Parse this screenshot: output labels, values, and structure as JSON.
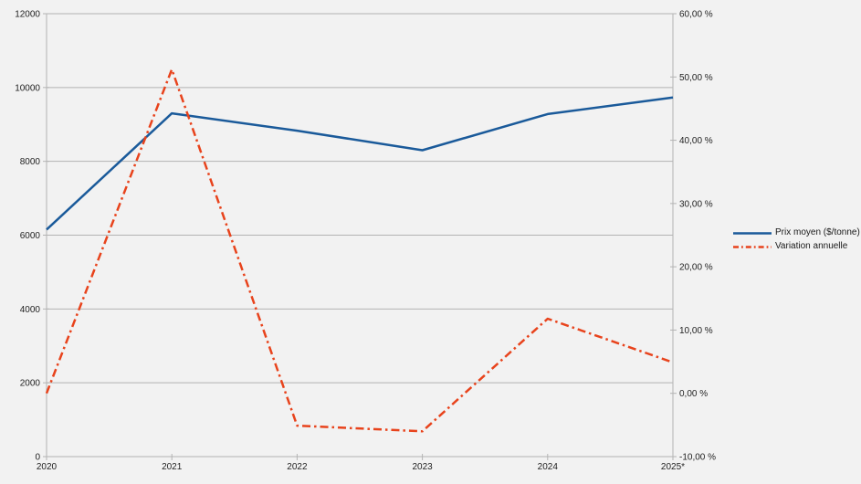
{
  "page": {
    "background": "#f2f2f2"
  },
  "legend": {
    "items": [
      {
        "label": "Prix moyen ($/tonne)"
      },
      {
        "label": "Variation annuelle"
      }
    ]
  },
  "chart_data": {
    "type": "line",
    "title": "",
    "categories": [
      "2020",
      "2021",
      "2022",
      "2023",
      "2024",
      "2025*"
    ],
    "series": [
      {
        "name": "Prix moyen ($/tonne)",
        "yaxis": "left",
        "values": [
          6150,
          9300,
          8830,
          8300,
          9280,
          9730
        ],
        "color": "#1a5a9a",
        "line_style": "solid"
      },
      {
        "name": "Variation annuelle",
        "yaxis": "right",
        "values": [
          0.0,
          51.2,
          -5.1,
          -6.0,
          11.8,
          4.9
        ],
        "color": "#e8431c",
        "line_style": "dash-dot"
      }
    ],
    "left_axis": {
      "min": 0,
      "max": 12000,
      "step": 2000,
      "tick_labels": [
        "0",
        "2000",
        "4000",
        "6000",
        "8000",
        "10000",
        "12000"
      ]
    },
    "right_axis": {
      "min": -10,
      "max": 60,
      "step": 10,
      "tick_labels": [
        "-10,00 %",
        "0,00 %",
        "10,00 %",
        "20,00 %",
        "30,00 %",
        "40,00 %",
        "50,00 %",
        "60,00 %"
      ],
      "unit": "%"
    },
    "x_axis": {
      "tick_labels": [
        "2020",
        "2021",
        "2022",
        "2023",
        "2024",
        "2025*"
      ]
    },
    "grid": "horizontal",
    "legend_position": "right",
    "colors": {
      "grid": "#b3b3b3",
      "axis": "#b3b3b3",
      "text": "#1f1f1f"
    }
  }
}
